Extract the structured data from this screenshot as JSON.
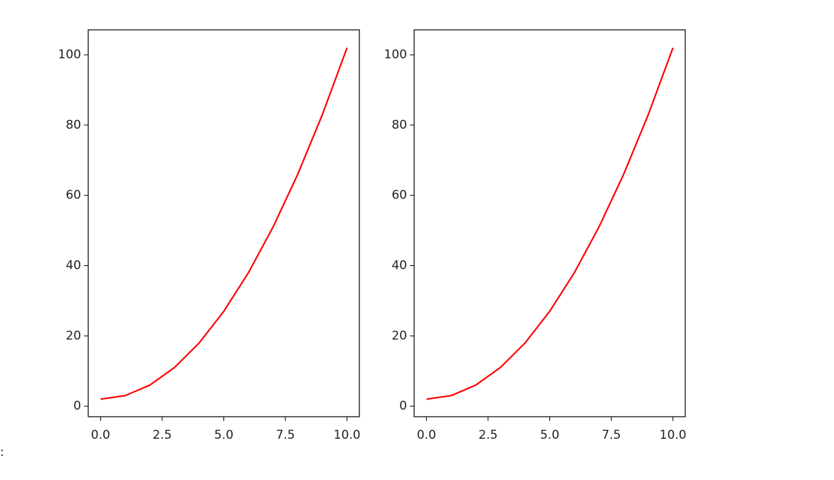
{
  "chart_data": [
    {
      "type": "line",
      "color": "#ff0000",
      "x": [
        0,
        1,
        2,
        3,
        4,
        5,
        6,
        7,
        8,
        9,
        10
      ],
      "values": [
        2,
        3,
        6,
        11,
        18,
        27,
        38,
        51,
        66,
        83,
        102
      ],
      "xlim": [
        -0.5,
        10.5
      ],
      "ylim": [
        -3,
        107.1
      ],
      "xticks": [
        {
          "value": 0,
          "label": "0.0"
        },
        2.5,
        {
          "value": 5,
          "label": "5.0"
        },
        7.5,
        {
          "value": 10,
          "label": "10.0"
        }
      ],
      "yticks": [
        0,
        20,
        40,
        60,
        80,
        100
      ]
    },
    {
      "type": "line",
      "color": "#ff0000",
      "x": [
        0,
        1,
        2,
        3,
        4,
        5,
        6,
        7,
        8,
        9,
        10
      ],
      "values": [
        2,
        3,
        6,
        11,
        18,
        27,
        38,
        51,
        66,
        83,
        102
      ],
      "xlim": [
        -0.5,
        10.5
      ],
      "ylim": [
        -3,
        107.1
      ],
      "xticks": [
        {
          "value": 0,
          "label": "0.0"
        },
        2.5,
        {
          "value": 5,
          "label": "5.0"
        },
        7.5,
        {
          "value": 10,
          "label": "10.0"
        }
      ],
      "yticks": [
        0,
        20,
        40,
        60,
        80,
        100
      ]
    }
  ],
  "stray_text": ":"
}
